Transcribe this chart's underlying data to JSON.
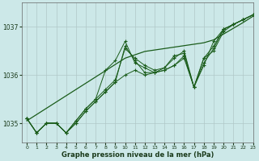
{
  "xlabel": "Graphe pression niveau de la mer (hPa)",
  "bg_color": "#cce8e8",
  "grid_color": "#b0c8c8",
  "line_color": "#1a5c1a",
  "xlim": [
    -0.5,
    23
  ],
  "ylim": [
    1034.6,
    1037.5
  ],
  "yticks": [
    1035,
    1036,
    1037
  ],
  "xticks": [
    0,
    1,
    2,
    3,
    4,
    5,
    6,
    7,
    8,
    9,
    10,
    11,
    12,
    13,
    14,
    15,
    16,
    17,
    18,
    19,
    20,
    21,
    22,
    23
  ],
  "series": [
    [
      1035.1,
      1034.8,
      1035.0,
      1035.0,
      1034.8,
      1035.0,
      1035.25,
      1035.45,
      1035.65,
      1035.85,
      1036.6,
      1036.3,
      1036.05,
      1036.05,
      1036.1,
      1036.2,
      1036.4,
      1035.75,
      1036.25,
      1036.55,
      1036.95,
      1037.05,
      1037.15,
      1037.25
    ],
    [
      1035.1,
      1034.8,
      1035.0,
      1035.0,
      1034.8,
      1035.0,
      1035.25,
      1035.45,
      1035.65,
      1035.85,
      1036.0,
      1036.1,
      1036.0,
      1036.05,
      1036.1,
      1036.2,
      1036.35,
      1035.75,
      1036.35,
      1036.5,
      1036.9,
      1037.05,
      1037.15,
      1037.25
    ],
    [
      1035.1,
      1034.8,
      1035.0,
      1035.0,
      1034.8,
      1035.05,
      1035.3,
      1035.5,
      1036.1,
      1036.3,
      1036.7,
      1036.25,
      1036.15,
      1036.05,
      1036.15,
      1036.35,
      1036.5,
      1035.75,
      1036.2,
      1036.7,
      1036.95,
      1037.05,
      1037.15,
      1037.25
    ],
    [
      1035.1,
      1034.8,
      1035.0,
      1035.0,
      1034.8,
      1035.05,
      1035.3,
      1035.5,
      1035.7,
      1035.9,
      1036.55,
      1036.35,
      1036.2,
      1036.1,
      1036.15,
      1036.4,
      1036.45,
      1035.75,
      1036.35,
      1036.6,
      1036.95,
      1037.05,
      1037.15,
      1037.25
    ]
  ],
  "trend_line": [
    1035.05,
    1035.18,
    1035.31,
    1035.44,
    1035.57,
    1035.7,
    1035.83,
    1035.96,
    1036.09,
    1036.22,
    1036.35,
    1036.42,
    1036.49,
    1036.52,
    1036.55,
    1036.58,
    1036.61,
    1036.64,
    1036.67,
    1036.73,
    1036.85,
    1036.97,
    1037.09,
    1037.22
  ]
}
